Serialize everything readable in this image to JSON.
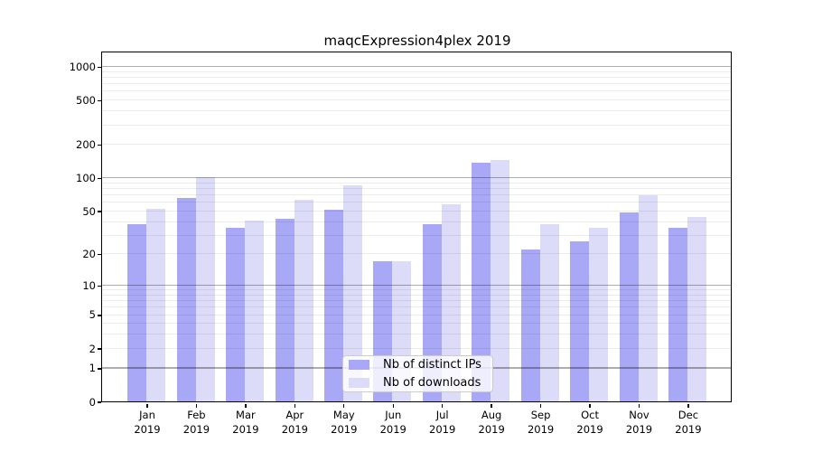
{
  "title": "maqcExpression4plex 2019",
  "legend": {
    "items": [
      {
        "label": "Nb of distinct IPs",
        "color": "#a8a8f7"
      },
      {
        "label": "Nb of downloads",
        "color": "#dcdcf8"
      }
    ]
  },
  "y_axis": {
    "ticks": [
      1000,
      500,
      200,
      100,
      50,
      20,
      10,
      5,
      2,
      1,
      0
    ],
    "major_gridlines": [
      1,
      10,
      100,
      1000
    ],
    "minor_gridlines": [
      2,
      3,
      4,
      5,
      6,
      7,
      8,
      9,
      20,
      30,
      40,
      50,
      60,
      70,
      80,
      90,
      200,
      300,
      400,
      500,
      600,
      700,
      800,
      900
    ]
  },
  "x_axis": {
    "months": [
      "Jan",
      "Feb",
      "Mar",
      "Apr",
      "May",
      "Jun",
      "Jul",
      "Aug",
      "Sep",
      "Oct",
      "Nov",
      "Dec"
    ],
    "year": "2019"
  },
  "chart_data": {
    "type": "bar",
    "title": "maqcExpression4plex 2019",
    "categories": [
      "Jan 2019",
      "Feb 2019",
      "Mar 2019",
      "Apr 2019",
      "May 2019",
      "Jun 2019",
      "Jul 2019",
      "Aug 2019",
      "Sep 2019",
      "Oct 2019",
      "Nov 2019",
      "Dec 2019"
    ],
    "series": [
      {
        "name": "Nb of distinct IPs",
        "color": "#a8a8f7",
        "values": [
          38,
          66,
          35,
          42,
          51,
          17,
          38,
          137,
          22,
          26,
          48,
          35
        ]
      },
      {
        "name": "Nb of downloads",
        "color": "#dcdcf8",
        "values": [
          52,
          101,
          41,
          63,
          86,
          17,
          57,
          146,
          38,
          35,
          70,
          44
        ]
      }
    ],
    "yscale": "log10(1+y)",
    "yticks": [
      0,
      1,
      2,
      5,
      10,
      20,
      50,
      100,
      200,
      500,
      1000
    ],
    "ylim": [
      0,
      1190
    ],
    "xlabel": "",
    "ylabel": "",
    "grid": "on, major and minor horizontal lines drawn over bars",
    "legend_position": "inside, lower center-left"
  }
}
